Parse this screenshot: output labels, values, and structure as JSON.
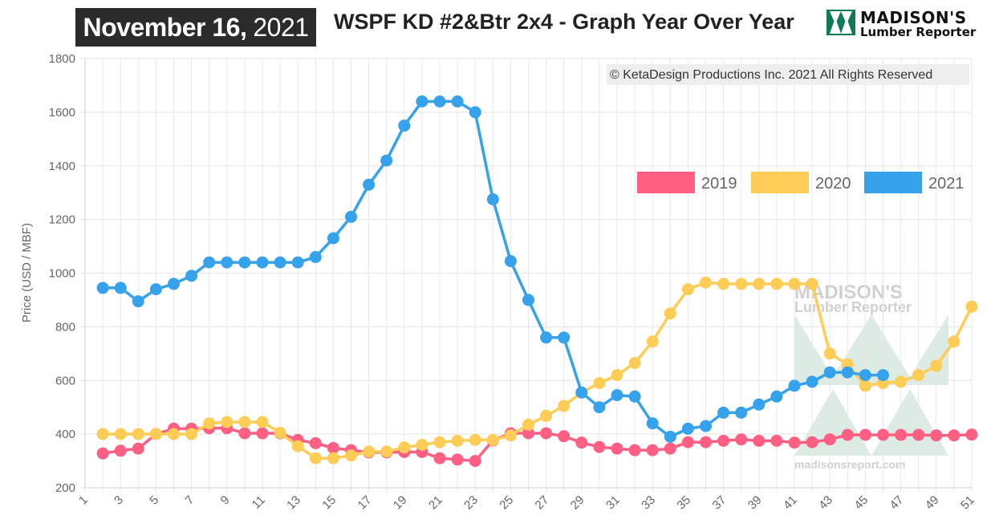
{
  "header": {
    "date_bold": "November 16,",
    "date_year": "2021",
    "title": "WSPF KD #2&Btr 2x4 - Graph Year Over Year",
    "logo_line1": "MADISON'S",
    "logo_line2": "Lumber Reporter"
  },
  "copyright": "© KetaDesign Productions Inc. 2021 All Rights Reserved",
  "watermark": {
    "line1": "MADISON'S",
    "line2": "Lumber Reporter",
    "url": "madisonsreport.com"
  },
  "colors": {
    "series_2019": "#ff5f82",
    "series_2020": "#ffcd56",
    "series_2021": "#36a2eb"
  },
  "chart_data": {
    "type": "line",
    "ylabel": "Price (USD / MBF)",
    "xlabel": "",
    "ylim": [
      200,
      1800
    ],
    "yticks": [
      200,
      400,
      600,
      800,
      1000,
      1200,
      1400,
      1600,
      1800
    ],
    "xlim": [
      1,
      51
    ],
    "xticks": [
      "1",
      "3",
      "5",
      "7",
      "9",
      "11",
      "13",
      "15",
      "17",
      "19",
      "21",
      "23",
      "25",
      "27",
      "29",
      "31",
      "33",
      "35",
      "37",
      "39",
      "41",
      "43",
      "45",
      "47",
      "49",
      "51"
    ],
    "grid": true,
    "legend": "top-right",
    "series": [
      {
        "name": "2019",
        "x": [
          2,
          3,
          4,
          5,
          6,
          7,
          8,
          9,
          10,
          11,
          12,
          13,
          14,
          15,
          16,
          17,
          18,
          19,
          20,
          21,
          22,
          23,
          24,
          25,
          26,
          27,
          28,
          29,
          30,
          31,
          32,
          33,
          34,
          35,
          36,
          37,
          38,
          39,
          40,
          41,
          42,
          43,
          44,
          45,
          46,
          47,
          48,
          49,
          50,
          51
        ],
        "values": [
          328,
          338,
          346,
          400,
          420,
          420,
          422,
          422,
          403,
          403,
          403,
          378,
          366,
          348,
          340,
          332,
          332,
          333,
          333,
          310,
          305,
          300,
          376,
          403,
          403,
          403,
          392,
          368,
          352,
          346,
          340,
          340,
          346,
          370,
          370,
          375,
          380,
          375,
          375,
          368,
          370,
          380,
          397,
          397,
          397,
          397,
          397,
          395,
          395,
          398
        ]
      },
      {
        "name": "2020",
        "x": [
          2,
          3,
          4,
          5,
          6,
          7,
          8,
          9,
          10,
          11,
          12,
          13,
          14,
          15,
          16,
          17,
          18,
          19,
          20,
          21,
          22,
          23,
          24,
          25,
          26,
          27,
          28,
          29,
          30,
          31,
          32,
          33,
          34,
          35,
          36,
          37,
          38,
          39,
          40,
          41,
          42,
          43,
          44,
          45,
          46,
          47,
          48,
          49,
          50,
          51
        ],
        "values": [
          400,
          400,
          400,
          400,
          400,
          400,
          440,
          445,
          445,
          445,
          405,
          355,
          310,
          310,
          320,
          335,
          335,
          350,
          360,
          370,
          375,
          378,
          378,
          395,
          435,
          468,
          505,
          555,
          590,
          620,
          665,
          745,
          850,
          940,
          965,
          960,
          960,
          960,
          960,
          960,
          960,
          700,
          660,
          580,
          590,
          595,
          620,
          655,
          745,
          875
        ]
      },
      {
        "name": "2021",
        "x": [
          2,
          3,
          4,
          5,
          6,
          7,
          8,
          9,
          10,
          11,
          12,
          13,
          14,
          15,
          16,
          17,
          18,
          19,
          20,
          21,
          22,
          23,
          24,
          25,
          26,
          27,
          28,
          29,
          30,
          31,
          32,
          33,
          34,
          35,
          36,
          37,
          38,
          39,
          40,
          41,
          42,
          43,
          44,
          45,
          46
        ],
        "values": [
          945,
          945,
          895,
          940,
          960,
          990,
          1040,
          1040,
          1040,
          1040,
          1040,
          1040,
          1060,
          1130,
          1210,
          1330,
          1420,
          1550,
          1640,
          1640,
          1640,
          1600,
          1275,
          1045,
          900,
          760,
          760,
          555,
          500,
          545,
          540,
          440,
          390,
          420,
          430,
          480,
          480,
          510,
          540,
          580,
          595,
          630,
          630,
          620,
          620
        ]
      }
    ]
  }
}
